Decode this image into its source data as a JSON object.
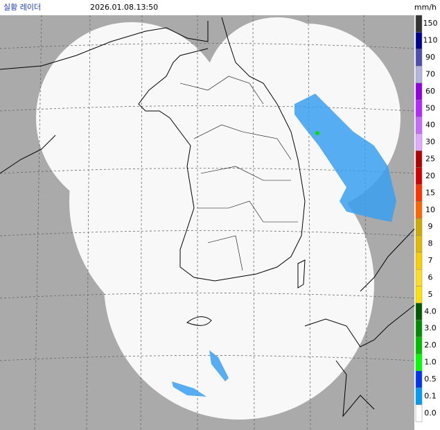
{
  "header": {
    "title": "실황 레이더",
    "timestamp": "2026.01.08.13:50",
    "unit": "mm/h"
  },
  "legend": {
    "labels": [
      "150",
      "110",
      "90",
      "70",
      "60",
      "50",
      "40",
      "30",
      "25",
      "20",
      "15",
      "10",
      "9",
      "8",
      "7",
      "6",
      "5",
      "4.0",
      "3.0",
      "2.0",
      "1.0",
      "0.5",
      "0.1",
      "0.0"
    ],
    "colors": [
      "#333333",
      "#000390",
      "#4c4eb1",
      "#b3b4de",
      "#9300e4",
      "#b329ff",
      "#c969ff",
      "#e0a9ff",
      "#b40000",
      "#d20000",
      "#ff3200",
      "#ff6600",
      "#ccaa00",
      "#e0b900",
      "#f9cd00",
      "#ffdc1f",
      "#ffe100",
      "#005a00",
      "#008c00",
      "#00be00",
      "#00ff00",
      "#0033f5",
      "#009bf5",
      "#ffffff"
    ]
  }
}
